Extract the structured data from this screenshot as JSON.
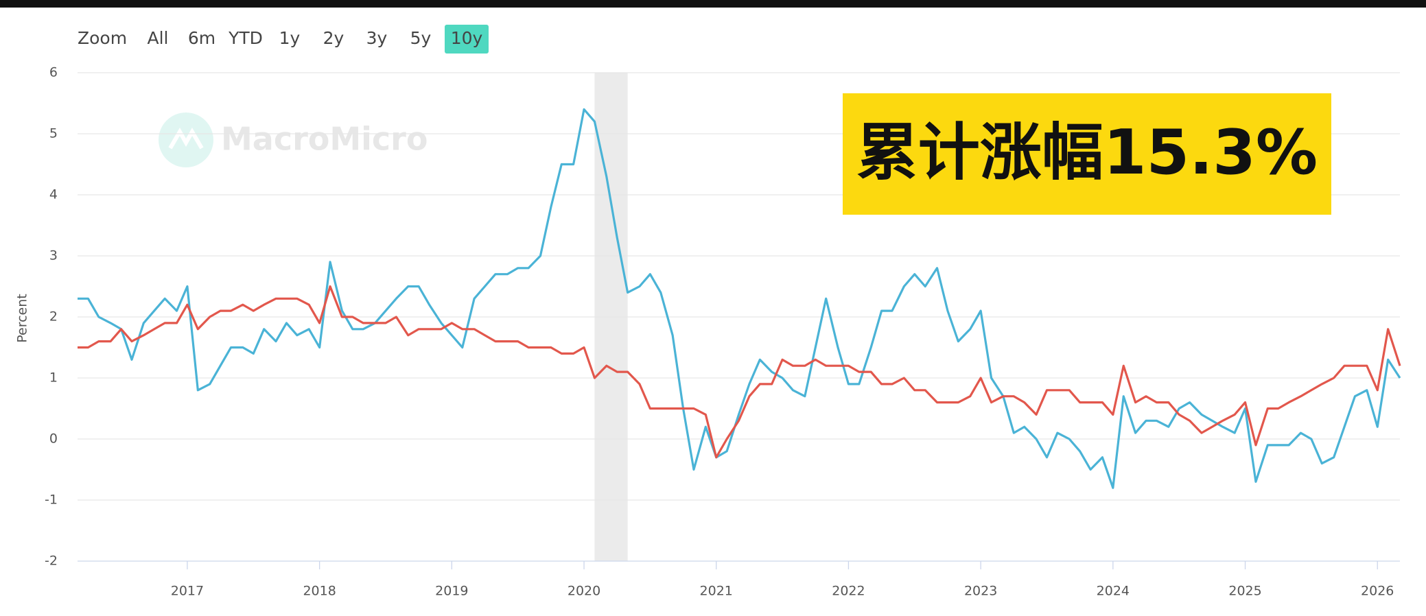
{
  "chart_data": {
    "type": "line",
    "range_selector": {
      "label": "Zoom",
      "buttons": [
        "All",
        "6m",
        "YTD",
        "1y",
        "2y",
        "3y",
        "5y",
        "10y"
      ],
      "selected": 7
    },
    "watermark": "MacroMicro",
    "annotation": "累计涨幅15.3%",
    "y_label": "Percent",
    "shaded_x": [
      2020.08,
      2020.33
    ],
    "x": [
      2016.17,
      2016.25,
      2016.33,
      2016.42,
      2016.5,
      2016.58,
      2016.67,
      2016.75,
      2016.83,
      2016.92,
      2017,
      2017.08,
      2017.17,
      2017.25,
      2017.33,
      2017.42,
      2017.5,
      2017.58,
      2017.67,
      2017.75,
      2017.83,
      2017.92,
      2018,
      2018.08,
      2018.17,
      2018.25,
      2018.33,
      2018.42,
      2018.5,
      2018.58,
      2018.67,
      2018.75,
      2018.83,
      2018.92,
      2019,
      2019.08,
      2019.17,
      2019.25,
      2019.33,
      2019.42,
      2019.5,
      2019.58,
      2019.67,
      2019.75,
      2019.83,
      2019.92,
      2020,
      2020.08,
      2020.17,
      2020.25,
      2020.33,
      2020.42,
      2020.5,
      2020.58,
      2020.67,
      2020.75,
      2020.83,
      2020.92,
      2021,
      2021.08,
      2021.17,
      2021.25,
      2021.33,
      2021.42,
      2021.5,
      2021.58,
      2021.67,
      2021.75,
      2021.83,
      2021.92,
      2022,
      2022.08,
      2022.17,
      2022.25,
      2022.33,
      2022.42,
      2022.5,
      2022.58,
      2022.67,
      2022.75,
      2022.83,
      2022.92,
      2023,
      2023.08,
      2023.17,
      2023.25,
      2023.33,
      2023.42,
      2023.5,
      2023.58,
      2023.67,
      2023.75,
      2023.83,
      2023.92,
      2024,
      2024.08,
      2024.17,
      2024.25,
      2024.33,
      2024.42,
      2024.5,
      2024.58,
      2024.67,
      2024.75,
      2024.83,
      2024.92,
      2025,
      2025.08,
      2025.17,
      2025.25,
      2025.33,
      2025.42,
      2025.5,
      2025.58,
      2025.67,
      2025.75,
      2025.83,
      2025.92,
      2026,
      2026.08,
      2026.17
    ],
    "series": [
      {
        "color": "#4ab3d6",
        "values": [
          2.3,
          2.3,
          2.0,
          1.9,
          1.8,
          1.3,
          1.9,
          2.1,
          2.3,
          2.1,
          2.5,
          0.8,
          0.9,
          1.2,
          1.5,
          1.5,
          1.4,
          1.8,
          1.6,
          1.9,
          1.7,
          1.8,
          1.5,
          2.9,
          2.1,
          1.8,
          1.8,
          1.9,
          2.1,
          2.3,
          2.5,
          2.5,
          2.2,
          1.9,
          1.7,
          1.5,
          2.3,
          2.5,
          2.7,
          2.7,
          2.8,
          2.8,
          3.0,
          3.8,
          4.5,
          4.5,
          5.4,
          5.2,
          4.3,
          3.3,
          2.4,
          2.5,
          2.7,
          2.4,
          1.7,
          0.5,
          -0.5,
          0.2,
          -0.3,
          -0.2,
          0.4,
          0.9,
          1.3,
          1.1,
          1.0,
          0.8,
          0.7,
          1.5,
          2.3,
          1.5,
          0.9,
          0.9,
          1.5,
          2.1,
          2.1,
          2.5,
          2.7,
          2.5,
          2.8,
          2.1,
          1.6,
          1.8,
          2.1,
          1.0,
          0.7,
          0.1,
          0.2,
          0.0,
          -0.3,
          0.1,
          0.0,
          -0.2,
          -0.5,
          -0.3,
          -0.8,
          0.7,
          0.1,
          0.3,
          0.3,
          0.2,
          0.5,
          0.6,
          0.4,
          0.3,
          0.2,
          0.1,
          0.5,
          -0.7,
          -0.1,
          -0.1,
          -0.1,
          0.1,
          0.0,
          -0.4,
          -0.3,
          0.2,
          0.7,
          0.8,
          0.2,
          1.3,
          1.0
        ]
      },
      {
        "color": "#e2574c",
        "values": [
          1.5,
          1.5,
          1.6,
          1.6,
          1.8,
          1.6,
          1.7,
          1.8,
          1.9,
          1.9,
          2.2,
          1.8,
          2.0,
          2.1,
          2.1,
          2.2,
          2.1,
          2.2,
          2.3,
          2.3,
          2.3,
          2.2,
          1.9,
          2.5,
          2.0,
          2.0,
          1.9,
          1.9,
          1.9,
          2.0,
          1.7,
          1.8,
          1.8,
          1.8,
          1.9,
          1.8,
          1.8,
          1.7,
          1.6,
          1.6,
          1.6,
          1.5,
          1.5,
          1.5,
          1.4,
          1.4,
          1.5,
          1.0,
          1.2,
          1.1,
          1.1,
          0.9,
          0.5,
          0.5,
          0.5,
          0.5,
          0.5,
          0.4,
          -0.3,
          0.0,
          0.3,
          0.7,
          0.9,
          0.9,
          1.3,
          1.2,
          1.2,
          1.3,
          1.2,
          1.2,
          1.2,
          1.1,
          1.1,
          0.9,
          0.9,
          1.0,
          0.8,
          0.8,
          0.6,
          0.6,
          0.6,
          0.7,
          1.0,
          0.6,
          0.7,
          0.7,
          0.6,
          0.4,
          0.8,
          0.8,
          0.8,
          0.6,
          0.6,
          0.6,
          0.4,
          1.2,
          0.6,
          0.7,
          0.6,
          0.6,
          0.4,
          0.3,
          0.1,
          0.2,
          0.3,
          0.4,
          0.6,
          -0.1,
          0.5,
          0.5,
          0.6,
          0.7,
          0.8,
          0.9,
          1.0,
          1.2,
          1.2,
          1.2,
          0.8,
          1.8,
          1.2
        ]
      }
    ],
    "xlim": [
      2016.17,
      2026.17
    ],
    "xticks": [
      2017,
      2018,
      2019,
      2020,
      2021,
      2022,
      2023,
      2024,
      2025,
      2026
    ],
    "ylim": [
      -2,
      6
    ],
    "yticks": [
      -2,
      -1,
      0,
      1,
      2,
      3,
      4,
      5,
      6
    ],
    "grid": true
  }
}
